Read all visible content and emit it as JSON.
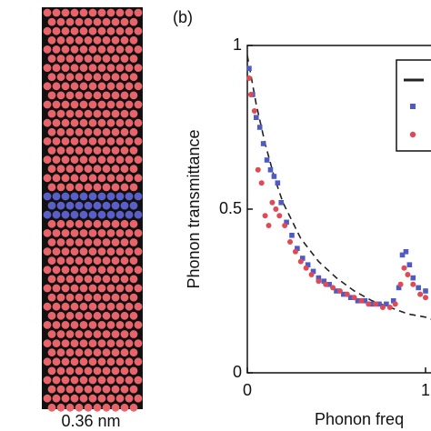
{
  "panel_a": {
    "scale_label": "0.36 nm"
  },
  "chart_data": {
    "type": "scatter",
    "panel_label": "(b)",
    "y_label": "Phonon transmittance",
    "x_label": "Phonon freq",
    "xlim": [
      0,
      1.06
    ],
    "ylim": [
      0,
      1
    ],
    "xticks": [
      0,
      1
    ],
    "yticks": [
      0,
      0.5,
      1
    ],
    "series": [
      {
        "kind": "line",
        "color": "#222222",
        "dashed": true,
        "x": [
          0,
          0.05,
          0.1,
          0.15,
          0.2,
          0.3,
          0.4,
          0.5,
          0.6,
          0.7,
          0.8,
          0.9,
          1.0,
          1.05
        ],
        "values": [
          0.97,
          0.82,
          0.7,
          0.6,
          0.52,
          0.41,
          0.34,
          0.29,
          0.25,
          0.22,
          0.2,
          0.18,
          0.17,
          0.16
        ]
      },
      {
        "kind": "square",
        "color": "#4f5bc4",
        "x": [
          0.01,
          0.03,
          0.05,
          0.07,
          0.09,
          0.11,
          0.13,
          0.15,
          0.17,
          0.19,
          0.22,
          0.25,
          0.28,
          0.31,
          0.34,
          0.37,
          0.4,
          0.43,
          0.46,
          0.5,
          0.54,
          0.58,
          0.62,
          0.66,
          0.7,
          0.74,
          0.78,
          0.82,
          0.85,
          0.87,
          0.89,
          0.91,
          0.93,
          0.96,
          1.0
        ],
        "values": [
          0.93,
          0.85,
          0.78,
          0.75,
          0.7,
          0.65,
          0.62,
          0.6,
          0.58,
          0.52,
          0.46,
          0.42,
          0.38,
          0.35,
          0.33,
          0.31,
          0.29,
          0.28,
          0.27,
          0.25,
          0.24,
          0.23,
          0.22,
          0.22,
          0.21,
          0.21,
          0.21,
          0.22,
          0.26,
          0.36,
          0.37,
          0.33,
          0.29,
          0.26,
          0.25
        ]
      },
      {
        "kind": "circle",
        "color": "#e04a55",
        "x": [
          0.01,
          0.02,
          0.04,
          0.06,
          0.08,
          0.1,
          0.12,
          0.14,
          0.16,
          0.18,
          0.21,
          0.24,
          0.27,
          0.3,
          0.33,
          0.36,
          0.4,
          0.44,
          0.48,
          0.52,
          0.56,
          0.6,
          0.64,
          0.68,
          0.72,
          0.76,
          0.8,
          0.83,
          0.86,
          0.88,
          0.9,
          0.93,
          0.97,
          1.0
        ],
        "values": [
          0.9,
          0.85,
          0.8,
          0.62,
          0.58,
          0.48,
          0.45,
          0.52,
          0.5,
          0.48,
          0.45,
          0.4,
          0.37,
          0.34,
          0.32,
          0.3,
          0.28,
          0.27,
          0.26,
          0.25,
          0.24,
          0.23,
          0.22,
          0.21,
          0.21,
          0.2,
          0.2,
          0.21,
          0.27,
          0.32,
          0.3,
          0.27,
          0.24,
          0.23
        ]
      }
    ]
  }
}
